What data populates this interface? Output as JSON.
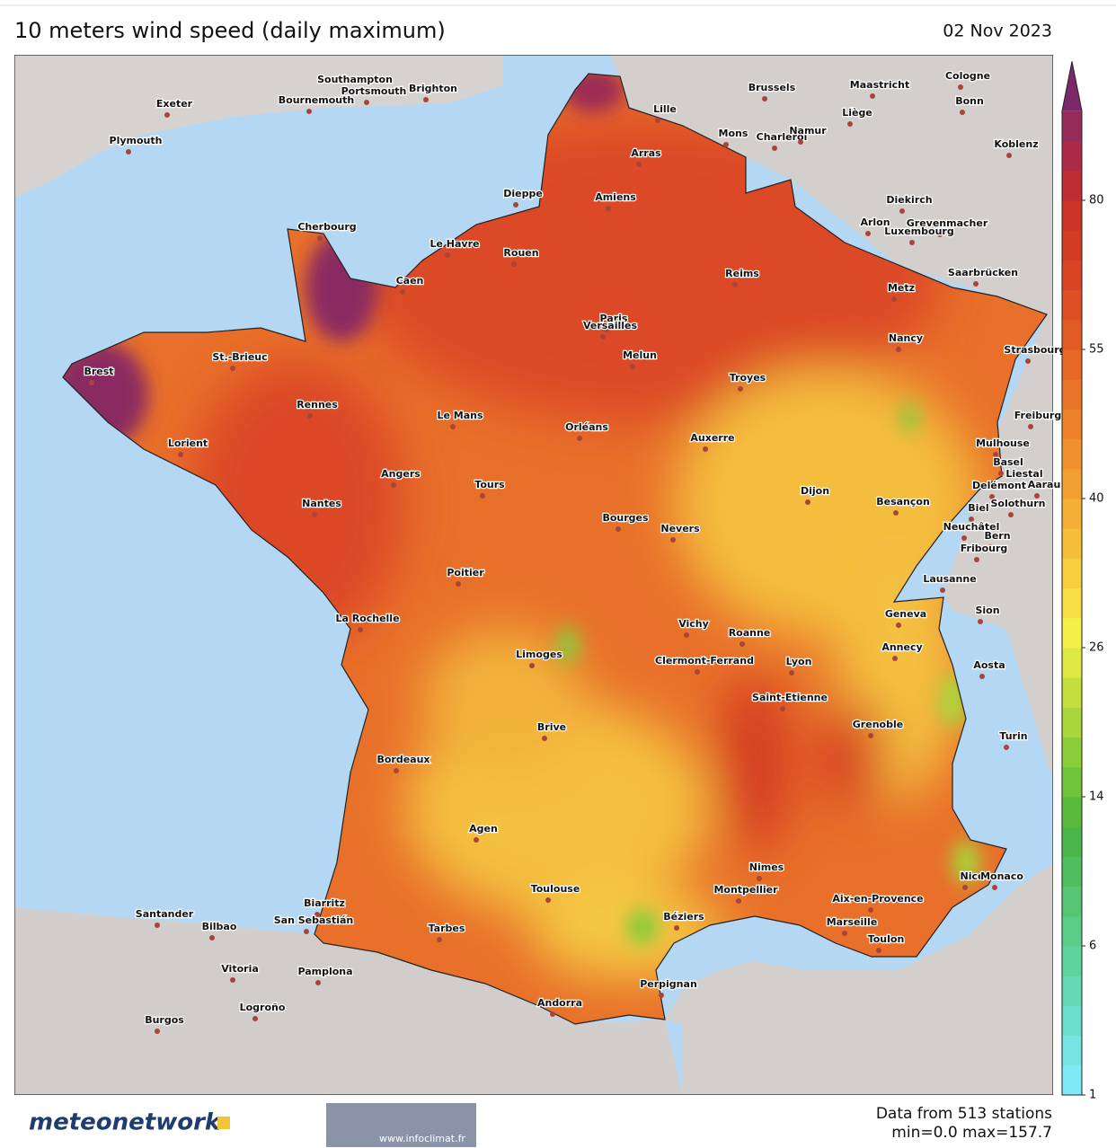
{
  "header": {
    "title": "10 meters wind speed (daily maximum)",
    "date": "02 Nov 2023"
  },
  "map": {
    "cities": [
      "Southampton",
      "Portsmouth",
      "Brighton",
      "Bournemouth",
      "Exeter",
      "Plymouth",
      "Brussels",
      "Maastricht",
      "Cologne",
      "Bonn",
      "Liège",
      "Lille",
      "Mons",
      "Charleroi",
      "Namur",
      "Koblenz",
      "Arras",
      "Amiens",
      "Dieppe",
      "Diekirch",
      "Arlon",
      "Grevenmacher",
      "Luxembourg",
      "Cherbourg",
      "Le Havre",
      "Rouen",
      "Reims",
      "Saarbrücken",
      "Caen",
      "Metz",
      "Paris",
      "Versailles",
      "Nancy",
      "Strasbourg",
      "Melun",
      "Brest",
      "St.-Brieuc",
      "Troyes",
      "Rennes",
      "Le Mans",
      "Freiburg",
      "Orléans",
      "Auxerre",
      "Lorient",
      "Mulhouse",
      "Basel",
      "Liestal",
      "Angers",
      "Delémont",
      "Aarau",
      "Tours",
      "Dijon",
      "Biel",
      "Solothurn",
      "Besançon",
      "Nantes",
      "Bourges",
      "Nevers",
      "Neuchâtel",
      "Bern",
      "Fribourg",
      "Poitier",
      "Lausanne",
      "Sion",
      "Geneva",
      "La Rochelle",
      "Vichy",
      "Roanne",
      "Annecy",
      "Limoges",
      "Clermont-Ferrand",
      "Lyon",
      "Aosta",
      "Saint-Etienne",
      "Grenoble",
      "Brive",
      "Turin",
      "Bordeaux",
      "Agen",
      "Nimes",
      "Nice",
      "Monaco",
      "Toulouse",
      "Montpellier",
      "Aix-en-Provence",
      "Biarritz",
      "Santander",
      "San Sebastián",
      "Béziers",
      "Marseille",
      "Bilbao",
      "Tarbes",
      "Toulon",
      "Vitoria",
      "Pamplona",
      "Perpignan",
      "Andorra",
      "Logroño",
      "Burgos"
    ]
  },
  "colorbar": {
    "ticks": [
      1,
      6,
      14,
      26,
      40,
      55,
      80
    ],
    "colors": [
      "#7fe9f5",
      "#76e4e2",
      "#6cdfcc",
      "#64d9b4",
      "#5ed39c",
      "#5acd86",
      "#56c672",
      "#50be5e",
      "#4ab64a",
      "#58bb3c",
      "#70c43a",
      "#8ccd3a",
      "#a8d63b",
      "#c4df3d",
      "#dde842",
      "#f4f04a",
      "#f6df44",
      "#f7cf3e",
      "#f6bf3a",
      "#f5af36",
      "#f3a032",
      "#f1912e",
      "#ee822a",
      "#ea7428",
      "#e66726",
      "#e25b24",
      "#de4f23",
      "#d94522",
      "#d33b22",
      "#cd3324",
      "#bf2c33",
      "#ab2a46",
      "#962a58"
    ],
    "extend_color": "#7a2a6a"
  },
  "footer": {
    "logo": "meteonetwork",
    "partner": "www.infoclimat.fr",
    "stations": "Data from 513 stations",
    "range": "min=0.0 max=157.7"
  }
}
